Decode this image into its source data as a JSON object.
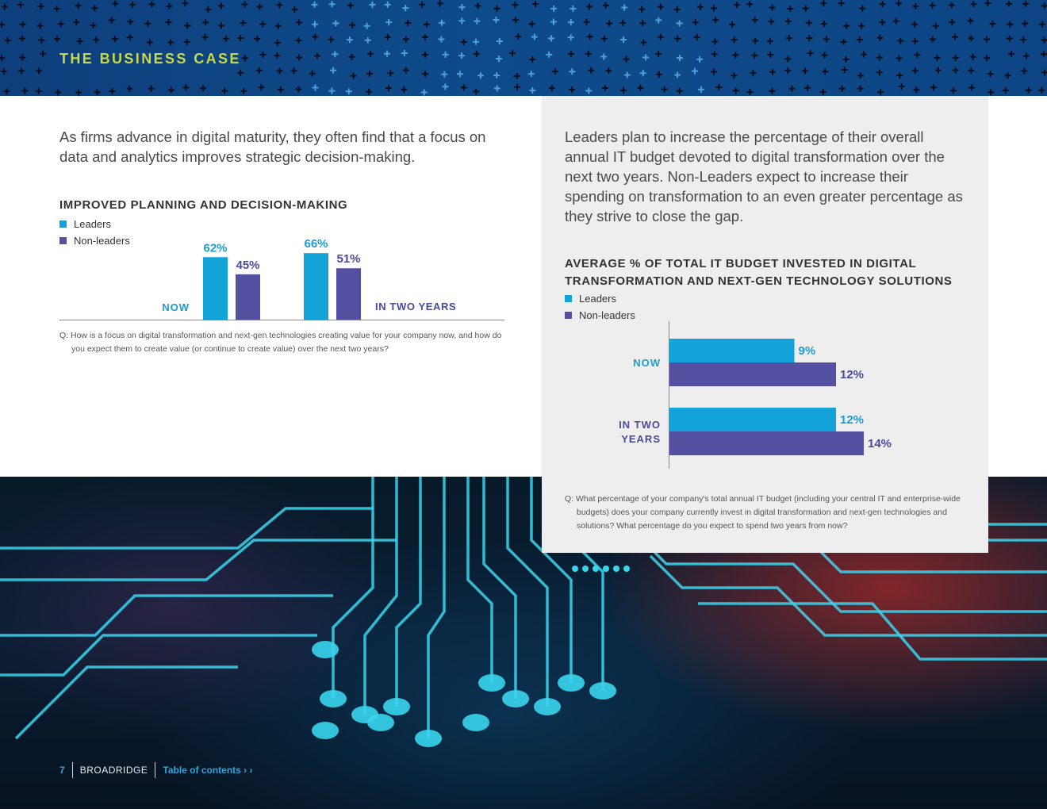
{
  "header": {
    "section_title": "THE BUSINESS CASE"
  },
  "left": {
    "intro": "As firms advance in digital maturity, they often find that a focus on data and analytics improves strategic decision-making.",
    "question": "Q: How is a focus on digital transformation and next-gen technologies creating value for your company now, and how do you expect them to create value (or continue to create value) over the next two years?"
  },
  "right": {
    "intro": "Leaders plan to increase the percentage of their overall annual IT budget devoted to digital transformation over the next two years. Non-Leaders expect to increase their spending on transformation to an even greater percentage as they strive to close the gap.",
    "question": "Q: What percentage of your company's total annual IT budget (including your central IT and enterprise-wide budgets) does your company currently invest in digital transformation and next-gen technologies and solutions? What percentage do you expect to spend two years from now?"
  },
  "footer": {
    "page_number": "7",
    "brand": "BROADRIDGE",
    "toc_label": "Table of contents",
    "toc_arrows": "› ›"
  },
  "colors": {
    "leaders": "#13a3d8",
    "non_leaders": "#5350a2",
    "title_accent": "#c8d948",
    "label_blue": "#1f9bd0",
    "label_purple": "#4a4a9a"
  },
  "chart_data": [
    {
      "type": "bar",
      "title": "IMPROVED PLANNING AND DECISION-MAKING",
      "categories": [
        "NOW",
        "IN TWO YEARS"
      ],
      "series": [
        {
          "name": "Leaders",
          "values": [
            62,
            66
          ]
        },
        {
          "name": "Non-leaders",
          "values": [
            45,
            51
          ]
        }
      ],
      "unit": "%",
      "ylim": [
        0,
        100
      ],
      "grid": false,
      "legend": "top-left"
    },
    {
      "type": "bar",
      "orientation": "horizontal",
      "title": "AVERAGE % OF TOTAL IT BUDGET INVESTED IN DIGITAL TRANSFORMATION AND NEXT-GEN TECHNOLOGY SOLUTIONS",
      "categories": [
        "NOW",
        "IN TWO YEARS"
      ],
      "series": [
        {
          "name": "Leaders",
          "values": [
            9,
            12
          ]
        },
        {
          "name": "Non-leaders",
          "values": [
            12,
            14
          ]
        }
      ],
      "unit": "%",
      "xlim": [
        0,
        20
      ],
      "grid": false,
      "legend": "top-left"
    }
  ]
}
